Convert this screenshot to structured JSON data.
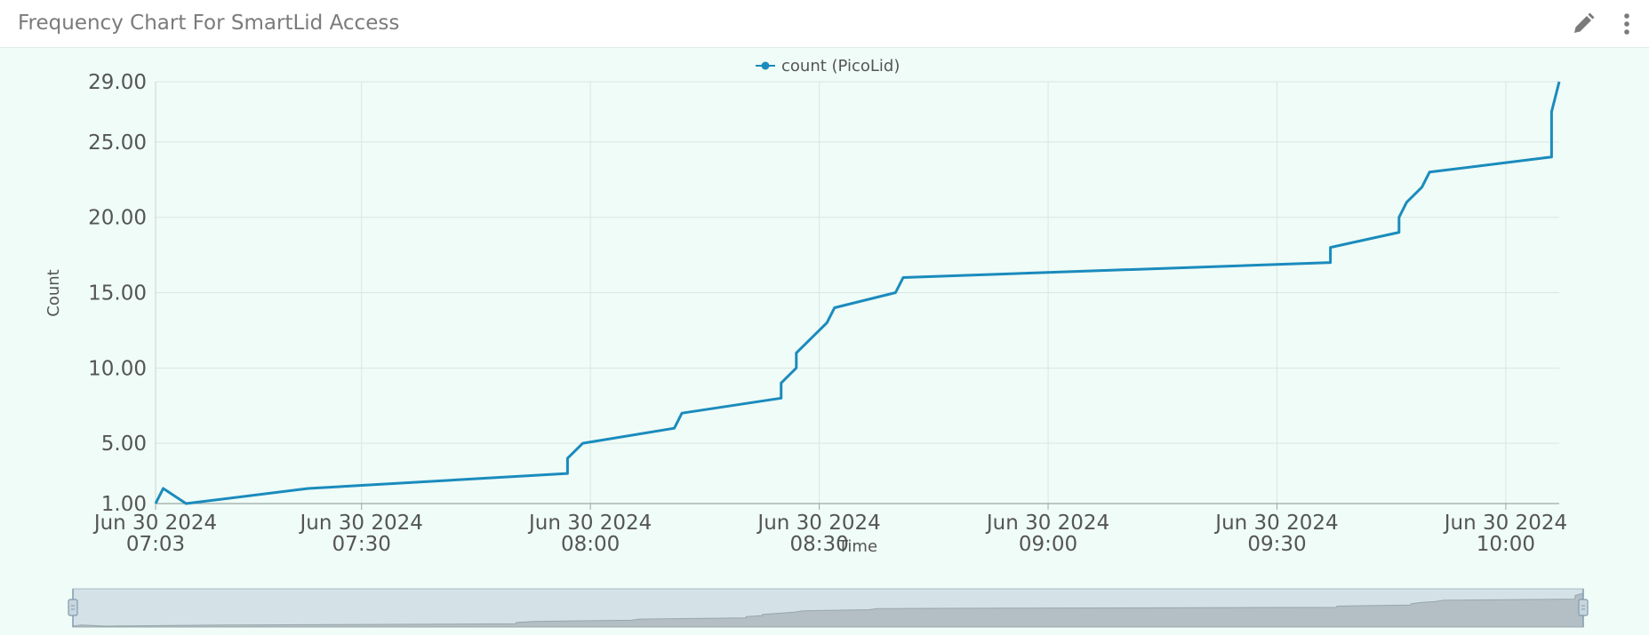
{
  "panel": {
    "title": "Frequency Chart For SmartLid Access"
  },
  "icons": {
    "edit": "pencil-icon",
    "more": "vertical-ellipsis-icon"
  },
  "colors": {
    "series": "#1a8bbd",
    "background": "#effcf7",
    "grid": "#dbe6e3",
    "axis_text": "#555555"
  },
  "chart_data": {
    "type": "line",
    "title": "",
    "xlabel": "Time",
    "ylabel": "Count",
    "legend_position": "top-center",
    "grid": true,
    "xlim": [
      "2024-06-30 07:03",
      "2024-06-30 10:07"
    ],
    "ylim": [
      1,
      29
    ],
    "y_ticks": [
      "1.00",
      "5.00",
      "10.00",
      "15.00",
      "20.00",
      "25.00",
      "29.00"
    ],
    "x_ticks": [
      {
        "time": "2024-06-30 07:03",
        "line1": "Jun 30 2024",
        "line2": "07:03"
      },
      {
        "time": "2024-06-30 07:30",
        "line1": "Jun 30 2024",
        "line2": "07:30"
      },
      {
        "time": "2024-06-30 08:00",
        "line1": "Jun 30 2024",
        "line2": "08:00"
      },
      {
        "time": "2024-06-30 08:30",
        "line1": "Jun 30 2024",
        "line2": "08:30"
      },
      {
        "time": "2024-06-30 09:00",
        "line1": "Jun 30 2024",
        "line2": "09:00"
      },
      {
        "time": "2024-06-30 09:30",
        "line1": "Jun 30 2024",
        "line2": "09:30"
      },
      {
        "time": "2024-06-30 10:00",
        "line1": "Jun 30 2024",
        "line2": "10:00"
      }
    ],
    "series": [
      {
        "name": "count (PicoLid)",
        "points": [
          [
            "2024-06-30 07:03",
            1
          ],
          [
            "2024-06-30 07:04",
            2
          ],
          [
            "2024-06-30 07:07",
            1
          ],
          [
            "2024-06-30 07:23",
            2
          ],
          [
            "2024-06-30 07:57",
            3
          ],
          [
            "2024-06-30 07:57",
            4
          ],
          [
            "2024-06-30 07:59",
            5
          ],
          [
            "2024-06-30 08:11",
            6
          ],
          [
            "2024-06-30 08:12",
            7
          ],
          [
            "2024-06-30 08:25",
            8
          ],
          [
            "2024-06-30 08:25",
            9
          ],
          [
            "2024-06-30 08:27",
            10
          ],
          [
            "2024-06-30 08:27",
            11
          ],
          [
            "2024-06-30 08:29",
            12
          ],
          [
            "2024-06-30 08:31",
            13
          ],
          [
            "2024-06-30 08:32",
            14
          ],
          [
            "2024-06-30 08:40",
            15
          ],
          [
            "2024-06-30 08:41",
            16
          ],
          [
            "2024-06-30 09:37",
            17
          ],
          [
            "2024-06-30 09:37",
            18
          ],
          [
            "2024-06-30 09:46",
            19
          ],
          [
            "2024-06-30 09:46",
            20
          ],
          [
            "2024-06-30 09:47",
            21
          ],
          [
            "2024-06-30 09:49",
            22
          ],
          [
            "2024-06-30 09:50",
            23
          ],
          [
            "2024-06-30 10:06",
            24
          ],
          [
            "2024-06-30 10:06",
            27
          ],
          [
            "2024-06-30 10:07",
            29
          ]
        ]
      }
    ]
  }
}
